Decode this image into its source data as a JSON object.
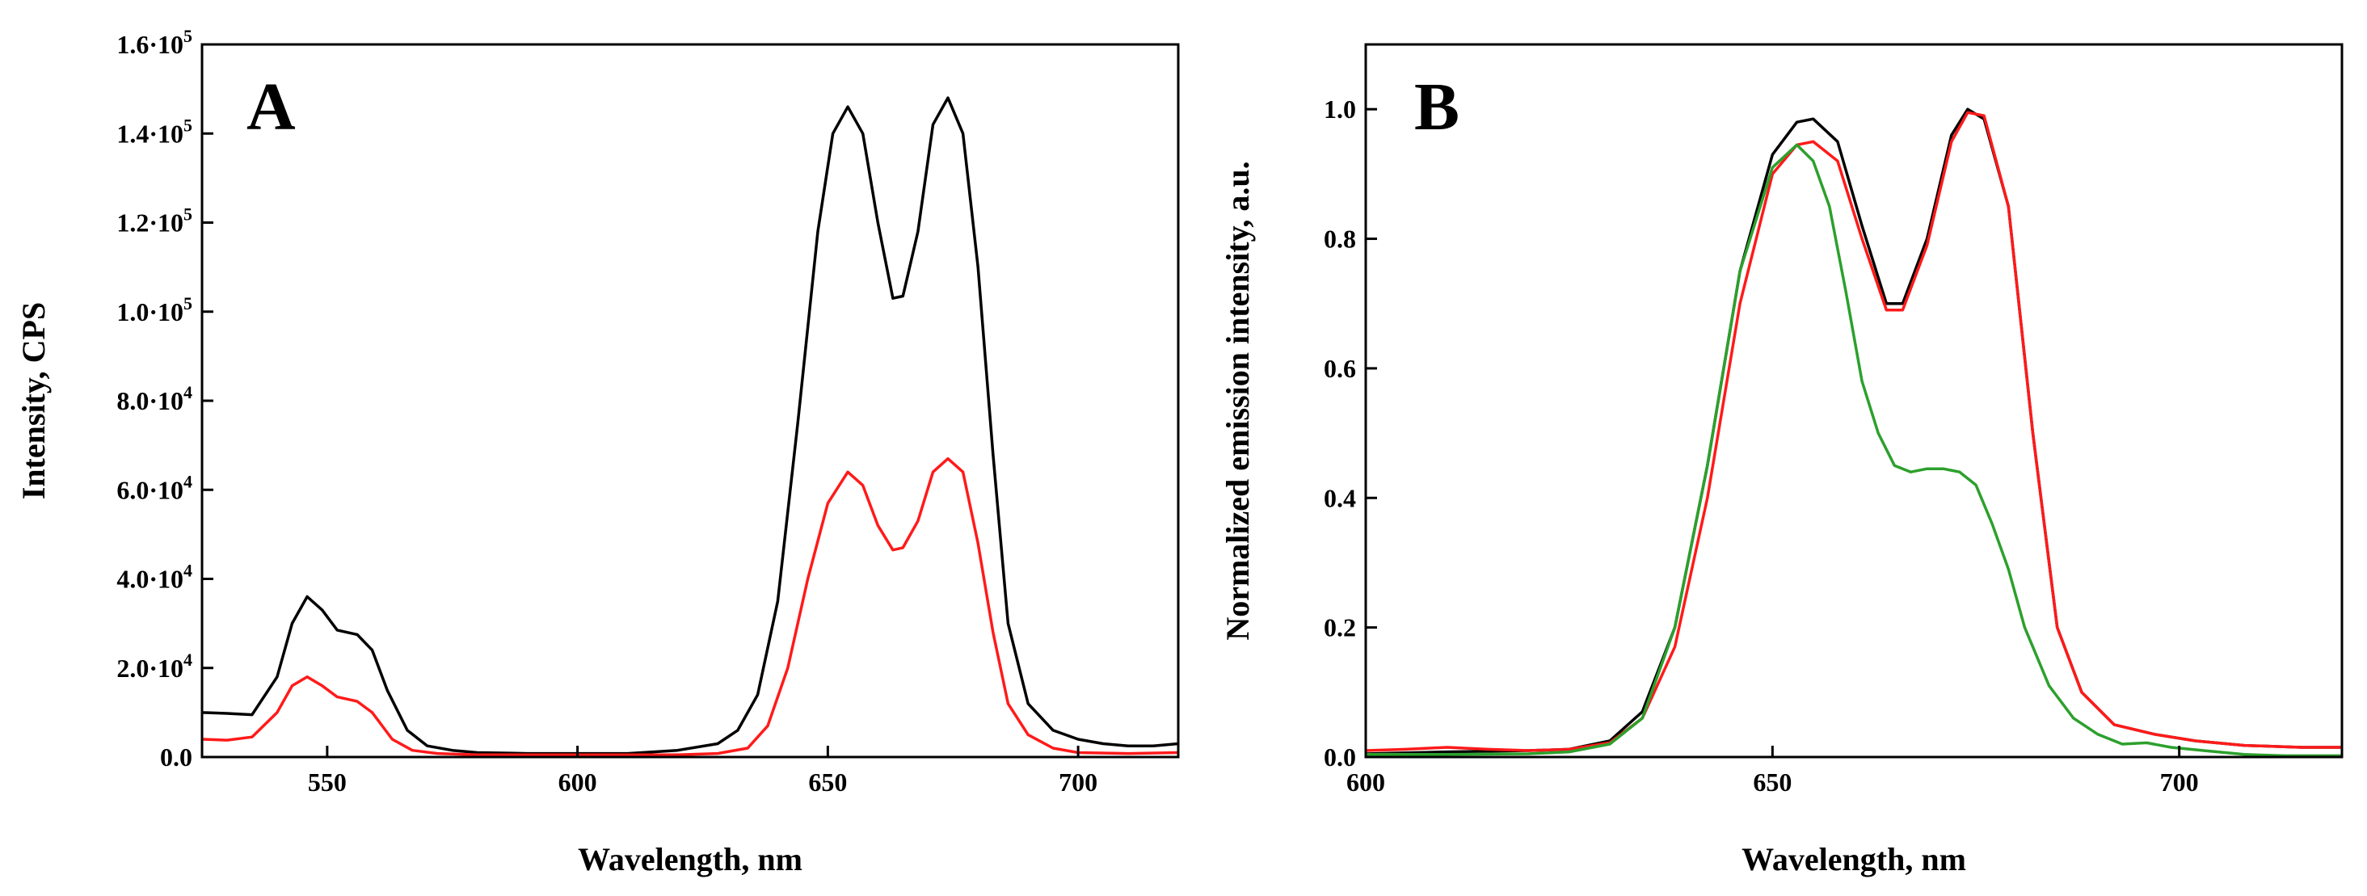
{
  "chart_data": [
    {
      "panel": "A",
      "type": "line",
      "title": "",
      "xlabel": "Wavelength, nm",
      "ylabel": "Intensity, CPS",
      "xlim": [
        525,
        720
      ],
      "ylim": [
        0,
        160000
      ],
      "x_ticks": [
        {
          "value": 550,
          "label": "550"
        },
        {
          "value": 600,
          "label": "600"
        },
        {
          "value": 650,
          "label": "650"
        },
        {
          "value": 700,
          "label": "700"
        }
      ],
      "y_ticks": [
        {
          "value": 0,
          "mant": "0.0",
          "exp": ""
        },
        {
          "value": 20000,
          "mant": "2.0·10",
          "exp": "4"
        },
        {
          "value": 40000,
          "mant": "4.0·10",
          "exp": "4"
        },
        {
          "value": 60000,
          "mant": "6.0·10",
          "exp": "4"
        },
        {
          "value": 80000,
          "mant": "8.0·10",
          "exp": "4"
        },
        {
          "value": 100000,
          "mant": "1.0·10",
          "exp": "5"
        },
        {
          "value": 120000,
          "mant": "1.2·10",
          "exp": "5"
        },
        {
          "value": 140000,
          "mant": "1.4·10",
          "exp": "5"
        },
        {
          "value": 160000,
          "mant": "1.6·10",
          "exp": "5"
        }
      ],
      "series": [
        {
          "name": "black",
          "color": "#000000",
          "points": [
            [
              525,
              10000
            ],
            [
              530,
              9800
            ],
            [
              535,
              9500
            ],
            [
              540,
              18000
            ],
            [
              543,
              30000
            ],
            [
              546,
              36000
            ],
            [
              549,
              33000
            ],
            [
              552,
              28500
            ],
            [
              556,
              27500
            ],
            [
              559,
              24000
            ],
            [
              562,
              15000
            ],
            [
              566,
              6000
            ],
            [
              570,
              2500
            ],
            [
              575,
              1500
            ],
            [
              580,
              1000
            ],
            [
              590,
              800
            ],
            [
              600,
              800
            ],
            [
              610,
              800
            ],
            [
              620,
              1500
            ],
            [
              628,
              3000
            ],
            [
              632,
              6000
            ],
            [
              636,
              14000
            ],
            [
              640,
              35000
            ],
            [
              644,
              75000
            ],
            [
              648,
              118000
            ],
            [
              651,
              140000
            ],
            [
              654,
              146000
            ],
            [
              657,
              140000
            ],
            [
              660,
              120000
            ],
            [
              663,
              103000
            ],
            [
              665,
              103500
            ],
            [
              668,
              118000
            ],
            [
              671,
              142000
            ],
            [
              674,
              148000
            ],
            [
              677,
              140000
            ],
            [
              680,
              110000
            ],
            [
              683,
              68000
            ],
            [
              686,
              30000
            ],
            [
              690,
              12000
            ],
            [
              695,
              6000
            ],
            [
              700,
              4000
            ],
            [
              705,
              3000
            ],
            [
              710,
              2500
            ],
            [
              715,
              2500
            ],
            [
              720,
              3000
            ]
          ]
        },
        {
          "name": "red",
          "color": "#ff1a1a",
          "points": [
            [
              525,
              4000
            ],
            [
              530,
              3800
            ],
            [
              535,
              4500
            ],
            [
              540,
              10000
            ],
            [
              543,
              16000
            ],
            [
              546,
              18000
            ],
            [
              549,
              16000
            ],
            [
              552,
              13500
            ],
            [
              556,
              12500
            ],
            [
              559,
              10000
            ],
            [
              563,
              4000
            ],
            [
              567,
              1500
            ],
            [
              572,
              800
            ],
            [
              580,
              500
            ],
            [
              600,
              500
            ],
            [
              620,
              500
            ],
            [
              628,
              800
            ],
            [
              634,
              2000
            ],
            [
              638,
              7000
            ],
            [
              642,
              20000
            ],
            [
              646,
              40000
            ],
            [
              650,
              57000
            ],
            [
              654,
              64000
            ],
            [
              657,
              61000
            ],
            [
              660,
              52000
            ],
            [
              663,
              46500
            ],
            [
              665,
              47000
            ],
            [
              668,
              53000
            ],
            [
              671,
              64000
            ],
            [
              674,
              67000
            ],
            [
              677,
              64000
            ],
            [
              680,
              48000
            ],
            [
              683,
              28000
            ],
            [
              686,
              12000
            ],
            [
              690,
              5000
            ],
            [
              695,
              2000
            ],
            [
              700,
              1000
            ],
            [
              710,
              800
            ],
            [
              720,
              1000
            ]
          ]
        }
      ]
    },
    {
      "panel": "B",
      "type": "line",
      "title": "",
      "xlabel": "Wavelength, nm",
      "ylabel": "Normalized emission intensity, a.u.",
      "xlim": [
        600,
        720
      ],
      "ylim": [
        0,
        1.1
      ],
      "x_ticks": [
        {
          "value": 600,
          "label": "600"
        },
        {
          "value": 650,
          "label": "650"
        },
        {
          "value": 700,
          "label": "700"
        }
      ],
      "y_ticks": [
        {
          "value": 0,
          "label": "0.0"
        },
        {
          "value": 0.2,
          "label": "0.2"
        },
        {
          "value": 0.4,
          "label": "0.4"
        },
        {
          "value": 0.6,
          "label": "0.6"
        },
        {
          "value": 0.8,
          "label": "0.8"
        },
        {
          "value": 1.0,
          "label": "1.0"
        }
      ],
      "series": [
        {
          "name": "black",
          "color": "#000000",
          "points": [
            [
              600,
              0.005
            ],
            [
              610,
              0.008
            ],
            [
              620,
              0.01
            ],
            [
              625,
              0.012
            ],
            [
              630,
              0.025
            ],
            [
              634,
              0.07
            ],
            [
              638,
              0.2
            ],
            [
              642,
              0.45
            ],
            [
              646,
              0.75
            ],
            [
              650,
              0.93
            ],
            [
              653,
              0.98
            ],
            [
              655,
              0.985
            ],
            [
              658,
              0.95
            ],
            [
              661,
              0.82
            ],
            [
              664,
              0.7
            ],
            [
              666,
              0.7
            ],
            [
              669,
              0.8
            ],
            [
              672,
              0.96
            ],
            [
              674,
              1.0
            ],
            [
              676,
              0.985
            ],
            [
              679,
              0.85
            ],
            [
              682,
              0.5
            ],
            [
              685,
              0.2
            ],
            [
              688,
              0.1
            ],
            [
              692,
              0.05
            ],
            [
              697,
              0.035
            ],
            [
              702,
              0.025
            ],
            [
              708,
              0.018
            ],
            [
              715,
              0.015
            ],
            [
              720,
              0.015
            ]
          ]
        },
        {
          "name": "red",
          "color": "#ff1a1a",
          "points": [
            [
              600,
              0.01
            ],
            [
              605,
              0.012
            ],
            [
              610,
              0.015
            ],
            [
              615,
              0.012
            ],
            [
              620,
              0.01
            ],
            [
              625,
              0.012
            ],
            [
              630,
              0.022
            ],
            [
              634,
              0.06
            ],
            [
              638,
              0.17
            ],
            [
              642,
              0.4
            ],
            [
              646,
              0.7
            ],
            [
              650,
              0.9
            ],
            [
              653,
              0.945
            ],
            [
              655,
              0.95
            ],
            [
              658,
              0.92
            ],
            [
              661,
              0.8
            ],
            [
              664,
              0.69
            ],
            [
              666,
              0.69
            ],
            [
              669,
              0.79
            ],
            [
              672,
              0.95
            ],
            [
              674,
              0.995
            ],
            [
              676,
              0.99
            ],
            [
              679,
              0.85
            ],
            [
              682,
              0.5
            ],
            [
              685,
              0.2
            ],
            [
              688,
              0.1
            ],
            [
              692,
              0.05
            ],
            [
              697,
              0.035
            ],
            [
              702,
              0.025
            ],
            [
              708,
              0.018
            ],
            [
              715,
              0.015
            ],
            [
              720,
              0.015
            ]
          ]
        },
        {
          "name": "green",
          "color": "#2ca02c",
          "points": [
            [
              600,
              0.004
            ],
            [
              610,
              0.004
            ],
            [
              620,
              0.005
            ],
            [
              625,
              0.008
            ],
            [
              630,
              0.02
            ],
            [
              634,
              0.06
            ],
            [
              638,
              0.2
            ],
            [
              642,
              0.45
            ],
            [
              646,
              0.75
            ],
            [
              650,
              0.91
            ],
            [
              653,
              0.945
            ],
            [
              655,
              0.92
            ],
            [
              657,
              0.85
            ],
            [
              659,
              0.72
            ],
            [
              661,
              0.58
            ],
            [
              663,
              0.5
            ],
            [
              665,
              0.45
            ],
            [
              667,
              0.44
            ],
            [
              669,
              0.445
            ],
            [
              671,
              0.445
            ],
            [
              673,
              0.44
            ],
            [
              675,
              0.42
            ],
            [
              677,
              0.36
            ],
            [
              679,
              0.29
            ],
            [
              681,
              0.2
            ],
            [
              684,
              0.11
            ],
            [
              687,
              0.06
            ],
            [
              690,
              0.035
            ],
            [
              693,
              0.02
            ],
            [
              696,
              0.022
            ],
            [
              699,
              0.015
            ],
            [
              703,
              0.01
            ],
            [
              708,
              0.004
            ],
            [
              713,
              0.002
            ],
            [
              720,
              0.002
            ]
          ]
        }
      ]
    }
  ]
}
